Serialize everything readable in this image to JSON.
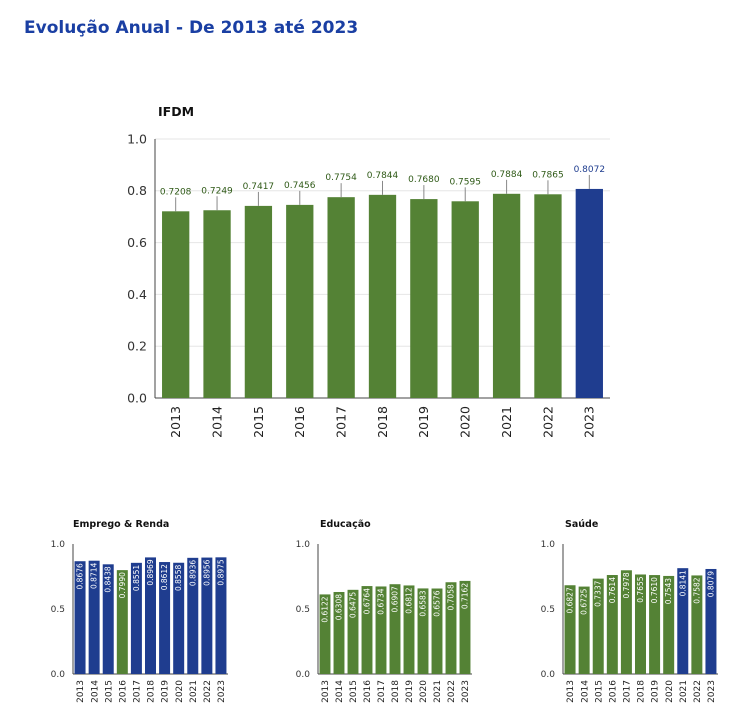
{
  "page": {
    "title": "Evolução Anual - De 2013 até 2023"
  },
  "colors": {
    "title": "#1a3fa3",
    "green": "#548235",
    "blue": "#1f3d8f",
    "label": "#2f5a17",
    "axis": "#333333"
  },
  "chart_data": [
    {
      "type": "bar",
      "title": "IFDM",
      "categories": [
        "2013",
        "2014",
        "2015",
        "2016",
        "2017",
        "2018",
        "2019",
        "2020",
        "2021",
        "2022",
        "2023"
      ],
      "values": [
        0.7208,
        0.7249,
        0.7417,
        0.7456,
        0.7754,
        0.7844,
        0.768,
        0.7595,
        0.7884,
        0.7865,
        0.8072
      ],
      "labels": [
        "0.7208",
        "0.7249",
        "0.7417",
        "0.7456",
        "0.7754",
        "0.7844",
        "0.7680",
        "0.7595",
        "0.7884",
        "0.7865",
        "0.8072"
      ],
      "bar_colors": [
        "green",
        "green",
        "green",
        "green",
        "green",
        "green",
        "green",
        "green",
        "green",
        "green",
        "blue"
      ],
      "ylim": [
        0,
        1.0
      ],
      "yticks": [
        "0.0",
        "0.2",
        "0.4",
        "0.6",
        "0.8",
        "1.0"
      ],
      "error_bars": true,
      "grid": true
    },
    {
      "type": "bar",
      "title": "Emprego & Renda",
      "categories": [
        "2013",
        "2014",
        "2015",
        "2016",
        "2017",
        "2018",
        "2019",
        "2020",
        "2021",
        "2022",
        "2023"
      ],
      "values": [
        0.8676,
        0.8714,
        0.8438,
        0.799,
        0.8551,
        0.8969,
        0.8612,
        0.8558,
        0.8936,
        0.8956,
        0.8975
      ],
      "labels": [
        "0.8676",
        "0.8714",
        "0.8438",
        "0.7990",
        "0.8551",
        "0.8969",
        "0.8612",
        "0.8558",
        "0.8936",
        "0.8956",
        "0.8975"
      ],
      "bar_colors": [
        "blue",
        "blue",
        "blue",
        "green",
        "blue",
        "blue",
        "blue",
        "blue",
        "blue",
        "blue",
        "blue"
      ],
      "ylim": [
        0,
        1.0
      ],
      "yticks": [
        "0.0",
        "0.5",
        "1.0"
      ]
    },
    {
      "type": "bar",
      "title": "Educação",
      "categories": [
        "2013",
        "2014",
        "2015",
        "2016",
        "2017",
        "2018",
        "2019",
        "2020",
        "2021",
        "2022",
        "2023"
      ],
      "values": [
        0.6122,
        0.6308,
        0.6475,
        0.6764,
        0.6734,
        0.6907,
        0.6812,
        0.6583,
        0.6576,
        0.7058,
        0.7162
      ],
      "labels": [
        "0.6122",
        "0.6308",
        "0.6475",
        "0.6764",
        "0.6734",
        "0.6907",
        "0.6812",
        "0.6583",
        "0.6576",
        "0.7058",
        "0.7162"
      ],
      "bar_colors": [
        "green",
        "green",
        "green",
        "green",
        "green",
        "green",
        "green",
        "green",
        "green",
        "green",
        "green"
      ],
      "ylim": [
        0,
        1.0
      ],
      "yticks": [
        "0.0",
        "0.5",
        "1.0"
      ]
    },
    {
      "type": "bar",
      "title": "Saúde",
      "categories": [
        "2013",
        "2014",
        "2015",
        "2016",
        "2017",
        "2018",
        "2019",
        "2020",
        "2021",
        "2022",
        "2023"
      ],
      "values": [
        0.6827,
        0.6725,
        0.7337,
        0.7614,
        0.7978,
        0.7655,
        0.761,
        0.7543,
        0.8141,
        0.7582,
        0.8079
      ],
      "labels": [
        "0.6827",
        "0.6725",
        "0.7337",
        "0.7614",
        "0.7978",
        "0.7655",
        "0.7610",
        "0.7543",
        "0.8141",
        "0.7582",
        "0.8079"
      ],
      "bar_colors": [
        "green",
        "green",
        "green",
        "green",
        "green",
        "green",
        "green",
        "green",
        "blue",
        "green",
        "blue"
      ],
      "ylim": [
        0,
        1.0
      ],
      "yticks": [
        "0.0",
        "0.5",
        "1.0"
      ]
    }
  ]
}
